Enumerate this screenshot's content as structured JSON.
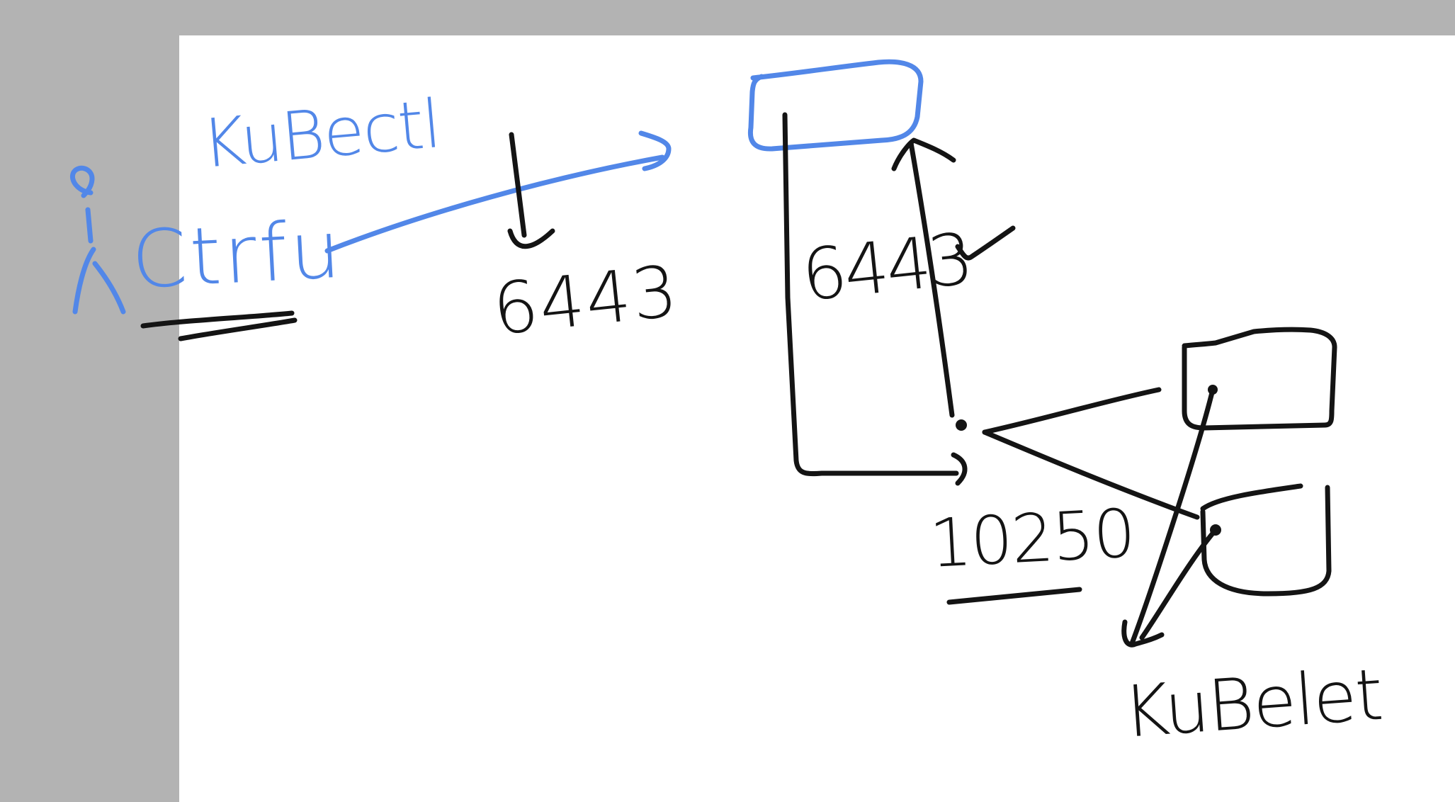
{
  "colors": {
    "background": "#b3b3b3",
    "page": "#ffffff",
    "ink_black": "#141414",
    "ink_blue": "#5287e8"
  },
  "labels": {
    "kubectl_word": "KuBectl",
    "client_word": "Ctrfu",
    "port_client": "6443",
    "port_api_server": "6443",
    "port_kubelet": "10250",
    "kubelet_word": "KuBelet"
  },
  "icons": {
    "user": "stick-figure-icon",
    "check": "check-mark-icon"
  }
}
